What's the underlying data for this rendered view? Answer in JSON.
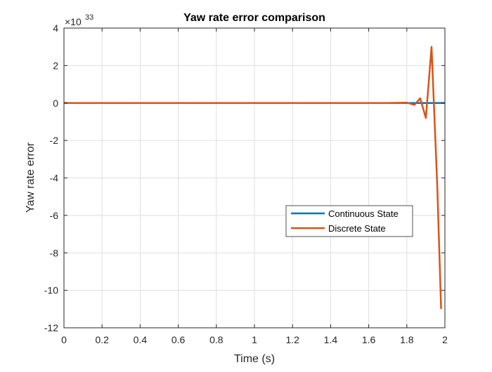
{
  "chart_data": {
    "type": "line",
    "title": "Yaw rate error comparison",
    "xlabel": "Time (s)",
    "ylabel": "Yaw rate error",
    "y_exponent_label": "×10",
    "y_exponent_power": "33",
    "xlim": [
      0,
      2
    ],
    "ylim": [
      -12,
      4
    ],
    "x_ticks": [
      0,
      0.2,
      0.4,
      0.6,
      0.8,
      1,
      1.2,
      1.4,
      1.6,
      1.8,
      2
    ],
    "x_tick_labels": [
      "0",
      "0.2",
      "0.4",
      "0.6",
      "0.8",
      "1",
      "1.2",
      "1.4",
      "1.6",
      "1.8",
      "2"
    ],
    "y_ticks": [
      4,
      2,
      0,
      -2,
      -4,
      -6,
      -8,
      -10,
      -12
    ],
    "y_tick_labels": [
      "4",
      "2",
      "0",
      "-2",
      "-4",
      "-6",
      "-8",
      "-10",
      "-12"
    ],
    "grid": true,
    "legend_position": "center-right",
    "series": [
      {
        "name": "Continuous State",
        "color": "#0072BD",
        "x": [
          0,
          0.5,
          1.0,
          1.5,
          1.8,
          1.85,
          1.9,
          1.95,
          2.0
        ],
        "y": [
          0,
          0,
          0,
          0,
          0,
          0,
          0,
          0,
          0
        ]
      },
      {
        "name": "Discrete State",
        "color": "#D95319",
        "x": [
          0,
          0.5,
          1.0,
          1.5,
          1.7,
          1.8,
          1.84,
          1.87,
          1.9,
          1.93,
          1.96,
          1.98
        ],
        "y": [
          0,
          0,
          0,
          0,
          0,
          0.02,
          -0.1,
          0.25,
          -0.8,
          3.0,
          -4.5,
          -11.0
        ]
      }
    ]
  }
}
